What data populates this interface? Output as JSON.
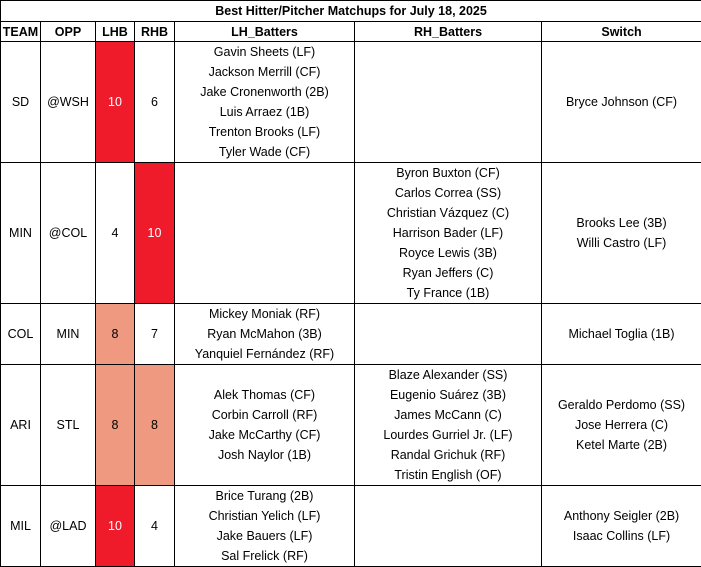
{
  "title": "Best Hitter/Pitcher Matchups for July 18, 2025",
  "headers": [
    "TEAM",
    "OPP",
    "LHB",
    "RHB",
    "LH_Batters",
    "RH_Batters",
    "Switch"
  ],
  "colors": {
    "hot": "#ef1b2b",
    "warm": "#ef9a80"
  },
  "rows": [
    {
      "team": "SD",
      "opp": "@WSH",
      "lhb": "10",
      "rhb": "6",
      "lhb_level": "hot",
      "rhb_level": "none",
      "lh_batters": [
        "Gavin Sheets (LF)",
        "Jackson Merrill (CF)",
        "Jake Cronenworth (2B)",
        "Luis Arraez (1B)",
        "Trenton Brooks (LF)",
        "Tyler Wade (CF)"
      ],
      "rh_batters": [],
      "switch": [
        "Bryce Johnson (CF)"
      ]
    },
    {
      "team": "MIN",
      "opp": "@COL",
      "lhb": "4",
      "rhb": "10",
      "lhb_level": "none",
      "rhb_level": "hot",
      "lh_batters": [],
      "rh_batters": [
        "Byron Buxton (CF)",
        "Carlos Correa (SS)",
        "Christian Vázquez (C)",
        "Harrison Bader (LF)",
        "Royce Lewis (3B)",
        "Ryan Jeffers (C)",
        "Ty France (1B)"
      ],
      "switch": [
        "Brooks Lee (3B)",
        "Willi Castro (LF)"
      ]
    },
    {
      "team": "COL",
      "opp": "MIN",
      "lhb": "8",
      "rhb": "7",
      "lhb_level": "warm",
      "rhb_level": "none",
      "lh_batters": [
        "Mickey Moniak (RF)",
        "Ryan McMahon (3B)",
        "Yanquiel Fernández (RF)"
      ],
      "rh_batters": [],
      "switch": [
        "Michael Toglia (1B)"
      ]
    },
    {
      "team": "ARI",
      "opp": "STL",
      "lhb": "8",
      "rhb": "8",
      "lhb_level": "warm",
      "rhb_level": "warm",
      "lh_batters": [
        "Alek Thomas (CF)",
        "Corbin Carroll (RF)",
        "Jake McCarthy (CF)",
        "Josh Naylor (1B)"
      ],
      "rh_batters": [
        "Blaze Alexander (SS)",
        "Eugenio Suárez (3B)",
        "James McCann (C)",
        "Lourdes Gurriel Jr. (LF)",
        "Randal Grichuk (RF)",
        "Tristin English (OF)"
      ],
      "switch": [
        "Geraldo Perdomo (SS)",
        "Jose Herrera (C)",
        "Ketel Marte (2B)"
      ]
    },
    {
      "team": "MIL",
      "opp": "@LAD",
      "lhb": "10",
      "rhb": "4",
      "lhb_level": "hot",
      "rhb_level": "none",
      "lh_batters": [
        "Brice Turang (2B)",
        "Christian Yelich (LF)",
        "Jake Bauers (LF)",
        "Sal Frelick (RF)"
      ],
      "rh_batters": [],
      "switch": [
        "Anthony Seigler (2B)",
        "Isaac Collins (LF)"
      ]
    }
  ]
}
